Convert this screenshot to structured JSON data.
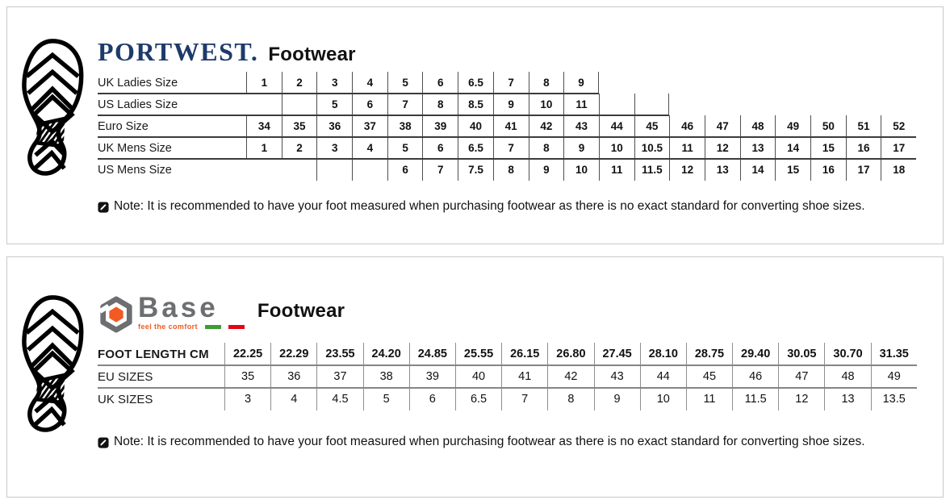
{
  "theme": {
    "portwest_navy": "#1e3a6b",
    "base_gray": "#6d6e71",
    "base_orange": "#f15a22",
    "flag_green": "#3f9c35",
    "flag_red": "#e30613",
    "panel_border": "#c9c9c9"
  },
  "panels": [
    {
      "brand": {
        "name": "PORTWEST.",
        "suffix": "Footwear"
      },
      "icon": "boot-print-icon",
      "note": {
        "icon": "note-pencil-icon",
        "text": "Note: It is recommended to have your foot measured when purchasing footwear as there is no exact standard for converting shoe sizes."
      },
      "table": {
        "columns": 19,
        "rows": [
          {
            "label": "UK Ladies Size",
            "offset": 0,
            "bold": true,
            "rule": 10,
            "cells": [
              "1",
              "2",
              "3",
              "4",
              "5",
              "6",
              "6.5",
              "7",
              "8",
              "9"
            ]
          },
          {
            "label": "US Ladies Size",
            "offset": 1,
            "bold": true,
            "rule": 12,
            "cells": [
              "",
              "5",
              "6",
              "7",
              "8",
              "8.5",
              "9",
              "10",
              "11",
              "",
              ""
            ]
          },
          {
            "label": "Euro Size",
            "offset": 0,
            "bold": true,
            "rule": 19,
            "cells": [
              "34",
              "35",
              "36",
              "37",
              "38",
              "39",
              "40",
              "41",
              "42",
              "43",
              "44",
              "45",
              "46",
              "47",
              "48",
              "49",
              "50",
              "51",
              "52"
            ]
          },
          {
            "label": "UK Mens Size",
            "offset": 0,
            "bold": true,
            "rule": 19,
            "cells": [
              "1",
              "2",
              "3",
              "4",
              "5",
              "6",
              "6.5",
              "7",
              "8",
              "9",
              "10",
              "10.5",
              "11",
              "12",
              "13",
              "14",
              "15",
              "16",
              "17"
            ]
          },
          {
            "label": "US Mens Size",
            "offset": 2,
            "bold": true,
            "rule": null,
            "cells": [
              "",
              "",
              "6",
              "7",
              "7.5",
              "8",
              "9",
              "10",
              "11",
              "11.5",
              "12",
              "13",
              "14",
              "15",
              "16",
              "17",
              "18"
            ]
          }
        ]
      }
    },
    {
      "brand": {
        "name": "Base",
        "tagline": "feel the comfort",
        "suffix": "Footwear"
      },
      "icon": "boot-print-icon",
      "note": {
        "icon": "note-pencil-icon",
        "text": "Note: It is recommended to have your foot measured when purchasing footwear as there is no exact standard for converting shoe sizes."
      },
      "table": {
        "columns": 15,
        "rows": [
          {
            "label": "FOOT LENGTH CM",
            "offset": 0,
            "header": true,
            "rule": 15,
            "cells": [
              "22.25",
              "22.29",
              "23.55",
              "24.20",
              "24.85",
              "25.55",
              "26.15",
              "26.80",
              "27.45",
              "28.10",
              "28.75",
              "29.40",
              "30.05",
              "30.70",
              "31.35"
            ]
          },
          {
            "label": "EU SIZES",
            "offset": 0,
            "rule": 15,
            "cells": [
              "35",
              "36",
              "37",
              "38",
              "39",
              "40",
              "41",
              "42",
              "43",
              "44",
              "45",
              "46",
              "47",
              "48",
              "49"
            ]
          },
          {
            "label": "UK SIZES",
            "offset": 0,
            "rule": null,
            "cells": [
              "3",
              "4",
              "4.5",
              "5",
              "6",
              "6.5",
              "7",
              "8",
              "9",
              "10",
              "11",
              "11.5",
              "12",
              "13",
              "13.5"
            ]
          }
        ]
      }
    }
  ]
}
